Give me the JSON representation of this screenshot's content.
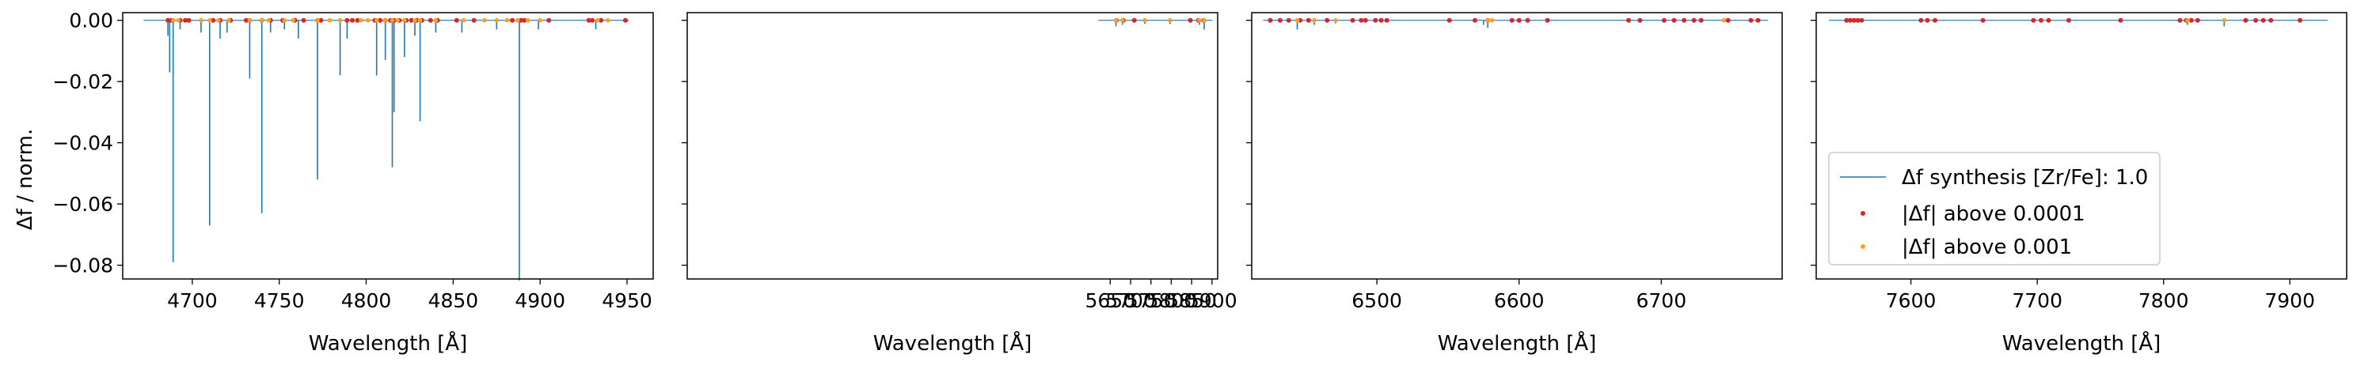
{
  "figure": {
    "background": "#ffffff",
    "colors": {
      "synthesis_line": "#1f77b4",
      "above_0001": "#d62728",
      "above_001": "#ff9f1c"
    }
  },
  "legend": {
    "panel": 3,
    "placement": "lower-left",
    "entries": [
      {
        "key": "synthesis",
        "label": "Δf synthesis [Zr/Fe]: 1.0"
      },
      {
        "key": "above_0001",
        "label": "|Δf| above 0.0001"
      },
      {
        "key": "above_001",
        "label": "|Δf| above 0.001"
      }
    ]
  },
  "chart_data": [
    {
      "type": "line",
      "xlabel": "Wavelength [Å]",
      "ylabel": "Δf / norm.",
      "xlim": [
        4660,
        4965
      ],
      "ylim": [
        -0.0845,
        0.0025
      ],
      "xticks": [
        4700,
        4750,
        4800,
        4850,
        4900,
        4950
      ],
      "yticks": [
        0.0,
        -0.02,
        -0.04,
        -0.06,
        -0.08
      ],
      "ytick_labels": [
        "0.00",
        "−0.02",
        "−0.04",
        "−0.06",
        "−0.08"
      ],
      "x_range": [
        4672,
        4951
      ],
      "lines": [
        {
          "x": 4686,
          "depth": 0.005
        },
        {
          "x": 4687,
          "depth": 0.017
        },
        {
          "x": 4689,
          "depth": 0.079
        },
        {
          "x": 4693,
          "depth": 0.003
        },
        {
          "x": 4705,
          "depth": 0.004
        },
        {
          "x": 4710,
          "depth": 0.067
        },
        {
          "x": 4716,
          "depth": 0.006
        },
        {
          "x": 4720,
          "depth": 0.004
        },
        {
          "x": 4733,
          "depth": 0.019
        },
        {
          "x": 4740,
          "depth": 0.063
        },
        {
          "x": 4745,
          "depth": 0.004
        },
        {
          "x": 4753,
          "depth": 0.003
        },
        {
          "x": 4761,
          "depth": 0.006
        },
        {
          "x": 4772,
          "depth": 0.052
        },
        {
          "x": 4785,
          "depth": 0.018
        },
        {
          "x": 4789,
          "depth": 0.006
        },
        {
          "x": 4806,
          "depth": 0.018
        },
        {
          "x": 4811,
          "depth": 0.013
        },
        {
          "x": 4815,
          "depth": 0.048
        },
        {
          "x": 4816,
          "depth": 0.03
        },
        {
          "x": 4822,
          "depth": 0.012
        },
        {
          "x": 4828,
          "depth": 0.005
        },
        {
          "x": 4831,
          "depth": 0.033
        },
        {
          "x": 4840,
          "depth": 0.004
        },
        {
          "x": 4855,
          "depth": 0.004
        },
        {
          "x": 4875,
          "depth": 0.003
        },
        {
          "x": 4888,
          "depth": 0.085
        },
        {
          "x": 4899,
          "depth": 0.003
        },
        {
          "x": 4932,
          "depth": 0.003
        }
      ],
      "points_0001": [
        4686,
        4688,
        4693,
        4696,
        4698,
        4712,
        4716,
        4722,
        4731,
        4733,
        4740,
        4745,
        4752,
        4759,
        4764,
        4772,
        4774,
        4789,
        4792,
        4795,
        4805,
        4808,
        4811,
        4814,
        4816,
        4819,
        4823,
        4826,
        4829,
        4832,
        4837,
        4841,
        4852,
        4862,
        4884,
        4889,
        4891,
        4905,
        4928,
        4930,
        4935,
        4949
      ],
      "points_001": [
        4689,
        4692,
        4705,
        4710,
        4715,
        4721,
        4733,
        4740,
        4744,
        4753,
        4758,
        4772,
        4779,
        4785,
        4797,
        4801,
        4806,
        4811,
        4815,
        4818,
        4822,
        4828,
        4831,
        4840,
        4856,
        4868,
        4875,
        4881,
        4887,
        4893,
        4900,
        4933,
        4939
      ]
    },
    {
      "type": "line",
      "xlabel": "Wavelength [Å]",
      "ylabel": "",
      "xlim": [
        4611,
        5914
      ],
      "ylim": [
        -0.0845,
        0.0025
      ],
      "xticks": [
        5650,
        5700,
        5750,
        5800,
        5850,
        5900
      ],
      "yticks": [
        0.0,
        -0.02,
        -0.04,
        -0.06,
        -0.08
      ],
      "x_range": [
        5621,
        5901
      ],
      "lines": [
        {
          "x": 5664,
          "depth": 0.002
        },
        {
          "x": 5680,
          "depth": 0.0015
        },
        {
          "x": 5735,
          "depth": 0.0012
        },
        {
          "x": 5797,
          "depth": 0.0012
        },
        {
          "x": 5869,
          "depth": 0.0015
        },
        {
          "x": 5881,
          "depth": 0.003
        }
      ],
      "points_0001": [
        5665,
        5682,
        5709,
        5847,
        5867,
        5880
      ],
      "points_001": [
        5664,
        5680,
        5735,
        5797,
        5869,
        5881
      ]
    },
    {
      "type": "line",
      "xlabel": "Wavelength [Å]",
      "ylabel": "",
      "xlim": [
        6412,
        6785
      ],
      "ylim": [
        -0.0845,
        0.0025
      ],
      "xticks": [
        6500,
        6600,
        6700
      ],
      "yticks": [
        0.0,
        -0.02,
        -0.04,
        -0.06,
        -0.08
      ],
      "x_range": [
        6420,
        6775
      ],
      "lines": [
        {
          "x": 6444,
          "depth": 0.003
        },
        {
          "x": 6456,
          "depth": 0.0015
        },
        {
          "x": 6471,
          "depth": 0.001
        },
        {
          "x": 6575,
          "depth": 0.0015
        },
        {
          "x": 6578,
          "depth": 0.0025
        }
      ],
      "points_0001": [
        6425,
        6432,
        6438,
        6446,
        6452,
        6465,
        6483,
        6489,
        6492,
        6499,
        6503,
        6507,
        6551,
        6569,
        6578,
        6595,
        6600,
        6606,
        6620,
        6677,
        6685,
        6702,
        6709,
        6716,
        6723,
        6728,
        6747,
        6763,
        6768
      ],
      "points_001": [
        6444,
        6456,
        6471,
        6578,
        6581,
        6744
      ]
    },
    {
      "type": "line",
      "xlabel": "Wavelength [Å]",
      "ylabel": "",
      "xlim": [
        7525,
        7945
      ],
      "ylim": [
        -0.0845,
        0.0025
      ],
      "xticks": [
        7600,
        7700,
        7800,
        7900
      ],
      "yticks": [
        0.0,
        -0.02,
        -0.04,
        -0.06,
        -0.08
      ],
      "x_range": [
        7535,
        7930
      ],
      "lines": [
        {
          "x": 7819,
          "depth": 0.0015
        },
        {
          "x": 7848,
          "depth": 0.002
        }
      ],
      "points_0001": [
        7549,
        7552,
        7555,
        7558,
        7561,
        7608,
        7613,
        7619,
        7657,
        7697,
        7703,
        7709,
        7725,
        7766,
        7813,
        7818,
        7822,
        7827,
        7865,
        7873,
        7879,
        7885,
        7908
      ],
      "points_001": [
        7819,
        7848
      ]
    }
  ]
}
